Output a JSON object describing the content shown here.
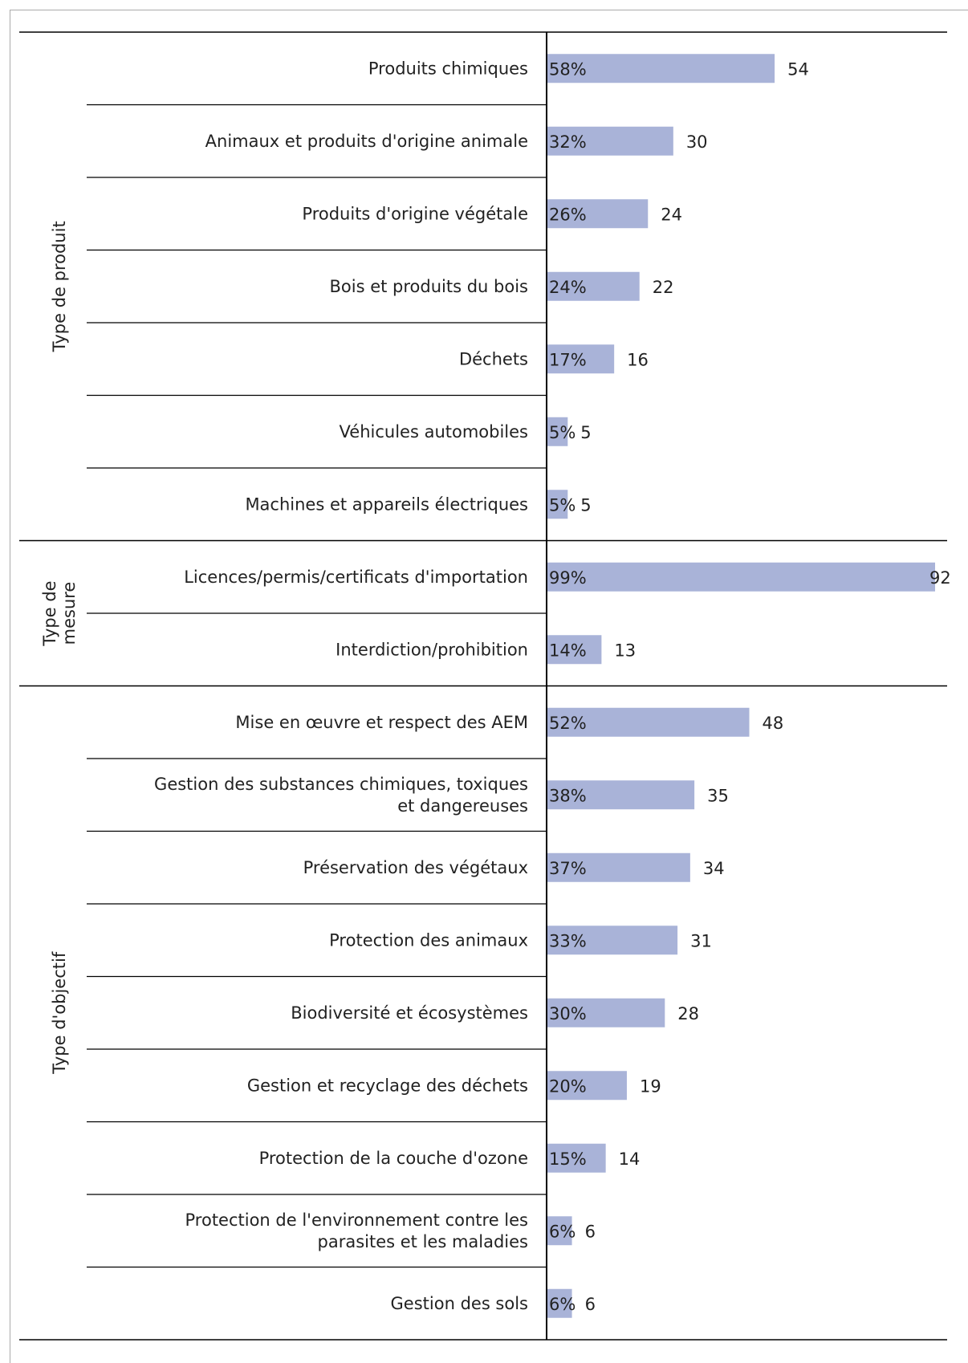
{
  "colors": {
    "bar": "#a9b3d8",
    "rule": "#000000",
    "frame": "#aaaaaa"
  },
  "chart_data": {
    "type": "bar",
    "orientation": "horizontal",
    "title": "",
    "xlabel": "",
    "ylabel": "",
    "xlim": [
      0,
      92
    ],
    "groups": [
      {
        "name": "Type de produit",
        "name_lines": [
          "Type de produit"
        ],
        "items": [
          {
            "label_lines": [
              "Produits chimiques"
            ],
            "value": 54,
            "percent": "58%"
          },
          {
            "label_lines": [
              "Animaux et produits d'origine animale"
            ],
            "value": 30,
            "percent": "32%"
          },
          {
            "label_lines": [
              "Produits d'origine végétale"
            ],
            "value": 24,
            "percent": "26%"
          },
          {
            "label_lines": [
              "Bois et produits du bois"
            ],
            "value": 22,
            "percent": "24%"
          },
          {
            "label_lines": [
              "Déchets"
            ],
            "value": 16,
            "percent": "17%"
          },
          {
            "label_lines": [
              "Véhicules automobiles"
            ],
            "value": 5,
            "percent": "5%"
          },
          {
            "label_lines": [
              "Machines et appareils électriques"
            ],
            "value": 5,
            "percent": "5%"
          }
        ]
      },
      {
        "name": "Type de mesure",
        "name_lines": [
          "Type de",
          "mesure"
        ],
        "items": [
          {
            "label_lines": [
              "Licences/permis/certificats d'importation"
            ],
            "value": 92,
            "percent": "99%"
          },
          {
            "label_lines": [
              "Interdiction/prohibition"
            ],
            "value": 13,
            "percent": "14%"
          }
        ]
      },
      {
        "name": "Type d'objectif",
        "name_lines": [
          "Type d'objectif"
        ],
        "items": [
          {
            "label_lines": [
              "Mise en œuvre et respect des AEM"
            ],
            "value": 48,
            "percent": "52%"
          },
          {
            "label_lines": [
              "Gestion des substances chimiques, toxiques",
              "et dangereuses"
            ],
            "value": 35,
            "percent": "38%"
          },
          {
            "label_lines": [
              "Préservation des végétaux"
            ],
            "value": 34,
            "percent": "37%"
          },
          {
            "label_lines": [
              "Protection des animaux"
            ],
            "value": 31,
            "percent": "33%"
          },
          {
            "label_lines": [
              "Biodiversité et écosystèmes"
            ],
            "value": 28,
            "percent": "30%"
          },
          {
            "label_lines": [
              "Gestion et recyclage des déchets"
            ],
            "value": 19,
            "percent": "20%"
          },
          {
            "label_lines": [
              "Protection de la couche d'ozone"
            ],
            "value": 14,
            "percent": "15%"
          },
          {
            "label_lines": [
              "Protection de l'environnement contre les",
              "parasites et les maladies"
            ],
            "value": 6,
            "percent": "6%"
          },
          {
            "label_lines": [
              "Gestion des sols"
            ],
            "value": 6,
            "percent": "6%"
          }
        ]
      }
    ]
  }
}
